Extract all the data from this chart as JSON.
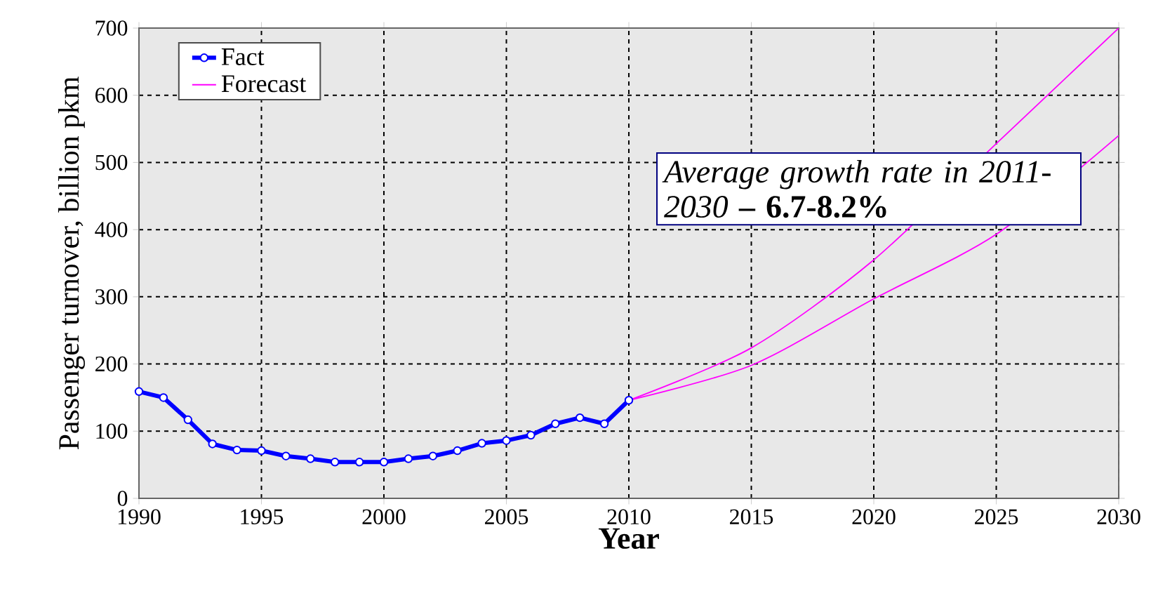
{
  "chart_data": {
    "type": "line",
    "xlabel": "Year",
    "ylabel": "Passenger turnover, billion pkm",
    "xlim": [
      1990,
      2030
    ],
    "xticks": [
      1990,
      1995,
      2000,
      2005,
      2010,
      2015,
      2020,
      2025,
      2030
    ],
    "ylim": [
      0,
      700
    ],
    "yticks": [
      0,
      100,
      200,
      300,
      400,
      500,
      600,
      700
    ],
    "grid": true,
    "legend": "top left",
    "series": [
      {
        "name": "Fact",
        "color": "#0000ff",
        "marker": "circle",
        "x": [
          1990,
          1991,
          1992,
          1993,
          1994,
          1995,
          1996,
          1997,
          1998,
          1999,
          2000,
          2001,
          2002,
          2003,
          2004,
          2005,
          2006,
          2007,
          2008,
          2009,
          2010
        ],
        "values": [
          159,
          150,
          117,
          81,
          72,
          71,
          63,
          59,
          54,
          54,
          54,
          59,
          63,
          71,
          82,
          86,
          94,
          111,
          120,
          111,
          146
        ]
      },
      {
        "name": "Forecast",
        "color": "#ff00ff",
        "marker": "none",
        "x": [
          2010,
          2015,
          2020,
          2025,
          2030
        ],
        "values": [
          146,
          224,
          355,
          528,
          700
        ]
      },
      {
        "color": "#ff00ff",
        "marker": "none",
        "x": [
          2010,
          2015,
          2020,
          2025,
          2030
        ],
        "values": [
          146,
          198,
          297,
          393,
          540
        ]
      }
    ],
    "annotations": [
      "*Average growth rate in 2011-2030* **– 6.7-8.2%**"
    ]
  }
}
